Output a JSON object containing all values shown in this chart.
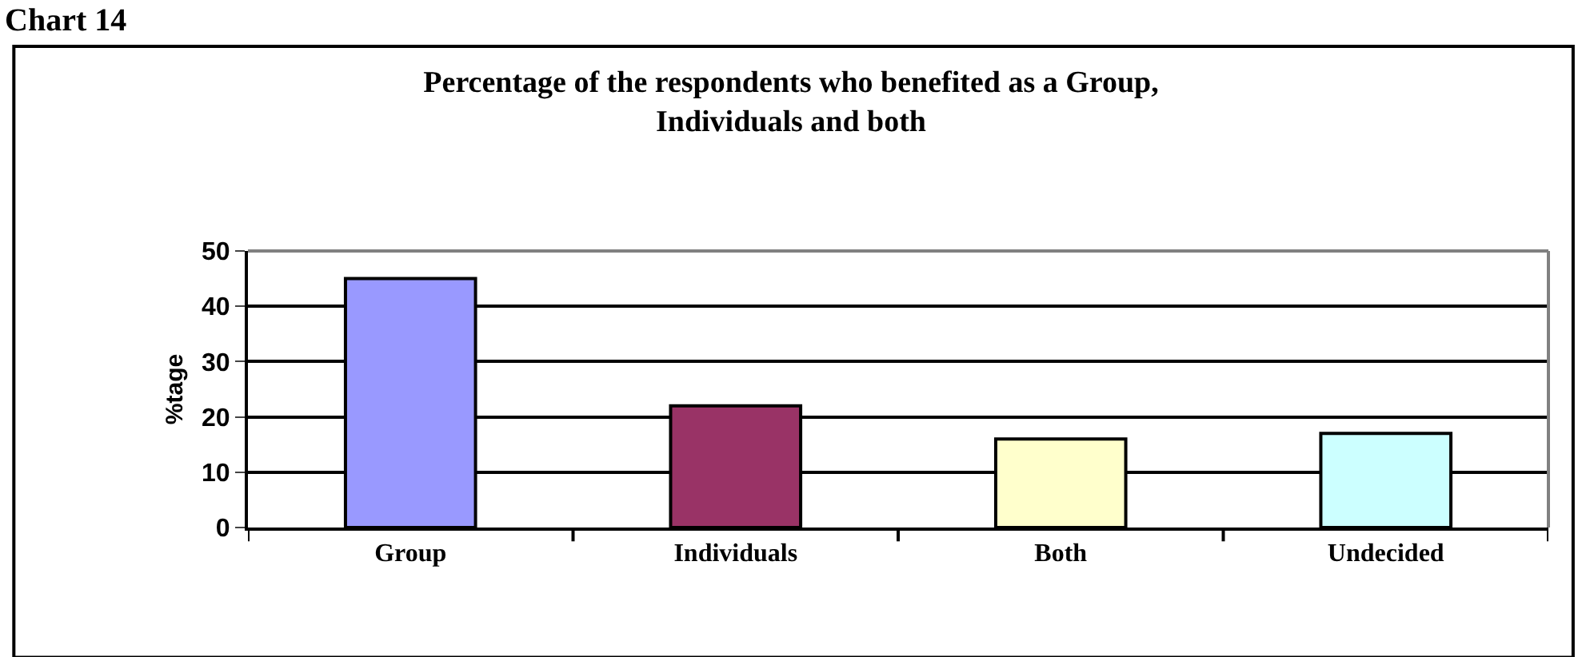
{
  "chart_data": {
    "type": "bar",
    "title": "Percentage of the respondents who benefited as a Group,\nIndividuals and both",
    "annotations": [
      "Chart 14"
    ],
    "categories": [
      "Group",
      "Individuals",
      "Both",
      "Undecided"
    ],
    "values": [
      45,
      22,
      16,
      17
    ],
    "colors": [
      "#9999ff",
      "#993366",
      "#ffffcc",
      "#ccffff"
    ],
    "ylabel": "%tage",
    "ylim": [
      0,
      50
    ],
    "yticks": [
      0,
      10,
      20,
      30,
      40,
      50
    ],
    "grid": "y"
  }
}
